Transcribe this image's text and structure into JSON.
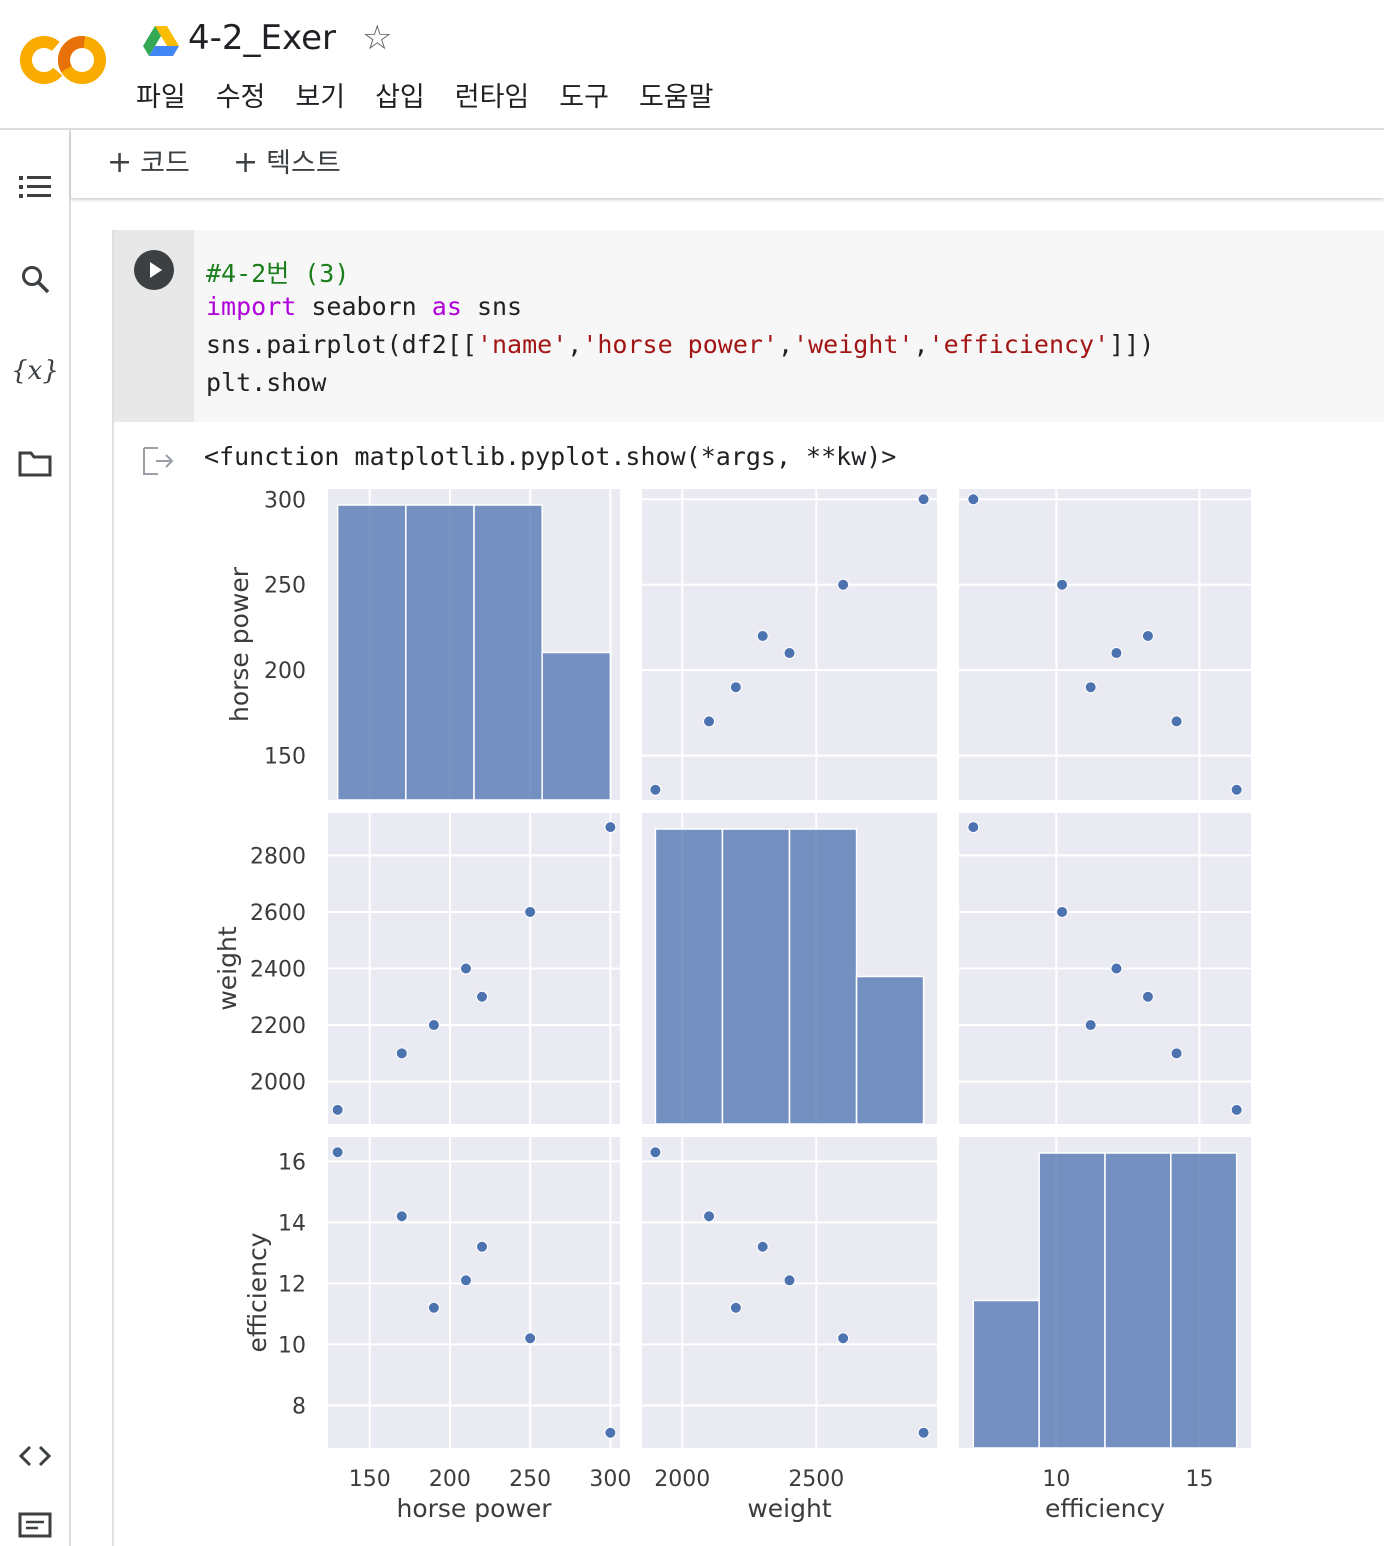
{
  "header": {
    "logo_text": "CO",
    "title": "4-2_Exer",
    "menu": [
      "파일",
      "수정",
      "보기",
      "삽입",
      "런타임",
      "도구",
      "도움말"
    ]
  },
  "toolbar": {
    "add_code_label": "코드",
    "add_text_label": "텍스트"
  },
  "sidebar": {
    "icons": [
      "toc-icon",
      "search-icon",
      "variables-icon",
      "folder-icon",
      "code-snippets-icon",
      "terminal-icon"
    ],
    "variables_label": "{x}"
  },
  "cell": {
    "code_lines": [
      [
        {
          "t": "#4-2번 (3)",
          "c": "comment"
        }
      ],
      [
        {
          "t": "import",
          "c": "kw"
        },
        {
          "t": " seaborn ",
          "c": ""
        },
        {
          "t": "as",
          "c": "kw"
        },
        {
          "t": " sns",
          "c": ""
        }
      ],
      [
        {
          "t": "sns.pairplot(df2[[",
          "c": ""
        },
        {
          "t": "'name'",
          "c": "str"
        },
        {
          "t": ",",
          "c": ""
        },
        {
          "t": "'horse power'",
          "c": "str"
        },
        {
          "t": ",",
          "c": ""
        },
        {
          "t": "'weight'",
          "c": "str"
        },
        {
          "t": ",",
          "c": ""
        },
        {
          "t": "'efficiency'",
          "c": "str"
        },
        {
          "t": "]])",
          "c": ""
        }
      ],
      [
        {
          "t": "plt.show",
          "c": ""
        }
      ]
    ],
    "output_text": "<function matplotlib.pyplot.show(*args, **kw)>"
  },
  "colors": {
    "accent_orange": "#f9ab00",
    "logo_orange": "#e8710a",
    "plot_bg": "#eaeaf2",
    "bar_fill": "#4c72b0",
    "grid": "#ffffff"
  },
  "chart_data": {
    "type": "scatter",
    "variables": [
      "horse power",
      "weight",
      "efficiency"
    ],
    "points": [
      {
        "horse power": 130,
        "weight": 1900,
        "efficiency": 16.3
      },
      {
        "horse power": 170,
        "weight": 2100,
        "efficiency": 14.2
      },
      {
        "horse power": 190,
        "weight": 2200,
        "efficiency": 11.2
      },
      {
        "horse power": 210,
        "weight": 2400,
        "efficiency": 12.1
      },
      {
        "horse power": 220,
        "weight": 2300,
        "efficiency": 13.2
      },
      {
        "horse power": 250,
        "weight": 2600,
        "efficiency": 10.2
      },
      {
        "horse power": 300,
        "weight": 2900,
        "efficiency": 7.1
      }
    ],
    "histograms": {
      "horse power": {
        "edges": [
          130,
          172.5,
          215,
          257.5,
          300
        ],
        "counts": [
          2,
          2,
          2,
          1
        ]
      },
      "weight": {
        "edges": [
          1900,
          2150,
          2400,
          2650,
          2900
        ],
        "counts": [
          2,
          2,
          2,
          1
        ]
      },
      "efficiency": {
        "edges": [
          7.1,
          9.4,
          11.7,
          14.0,
          16.3
        ],
        "counts": [
          1,
          2,
          2,
          2
        ]
      }
    },
    "axes": {
      "horse power": {
        "ticks": [
          150,
          200,
          250,
          300
        ]
      },
      "weight": {
        "x_ticks": [
          2000,
          2500
        ],
        "y_ticks": [
          2000,
          2200,
          2400,
          2600,
          2800
        ]
      },
      "efficiency": {
        "x_ticks": [
          10,
          15
        ],
        "y_ticks": [
          8,
          10,
          12,
          14,
          16
        ]
      }
    },
    "xlabels": [
      "horse power",
      "weight",
      "efficiency"
    ],
    "ylabels": [
      "horse power",
      "weight",
      "efficiency"
    ],
    "grid": true
  }
}
